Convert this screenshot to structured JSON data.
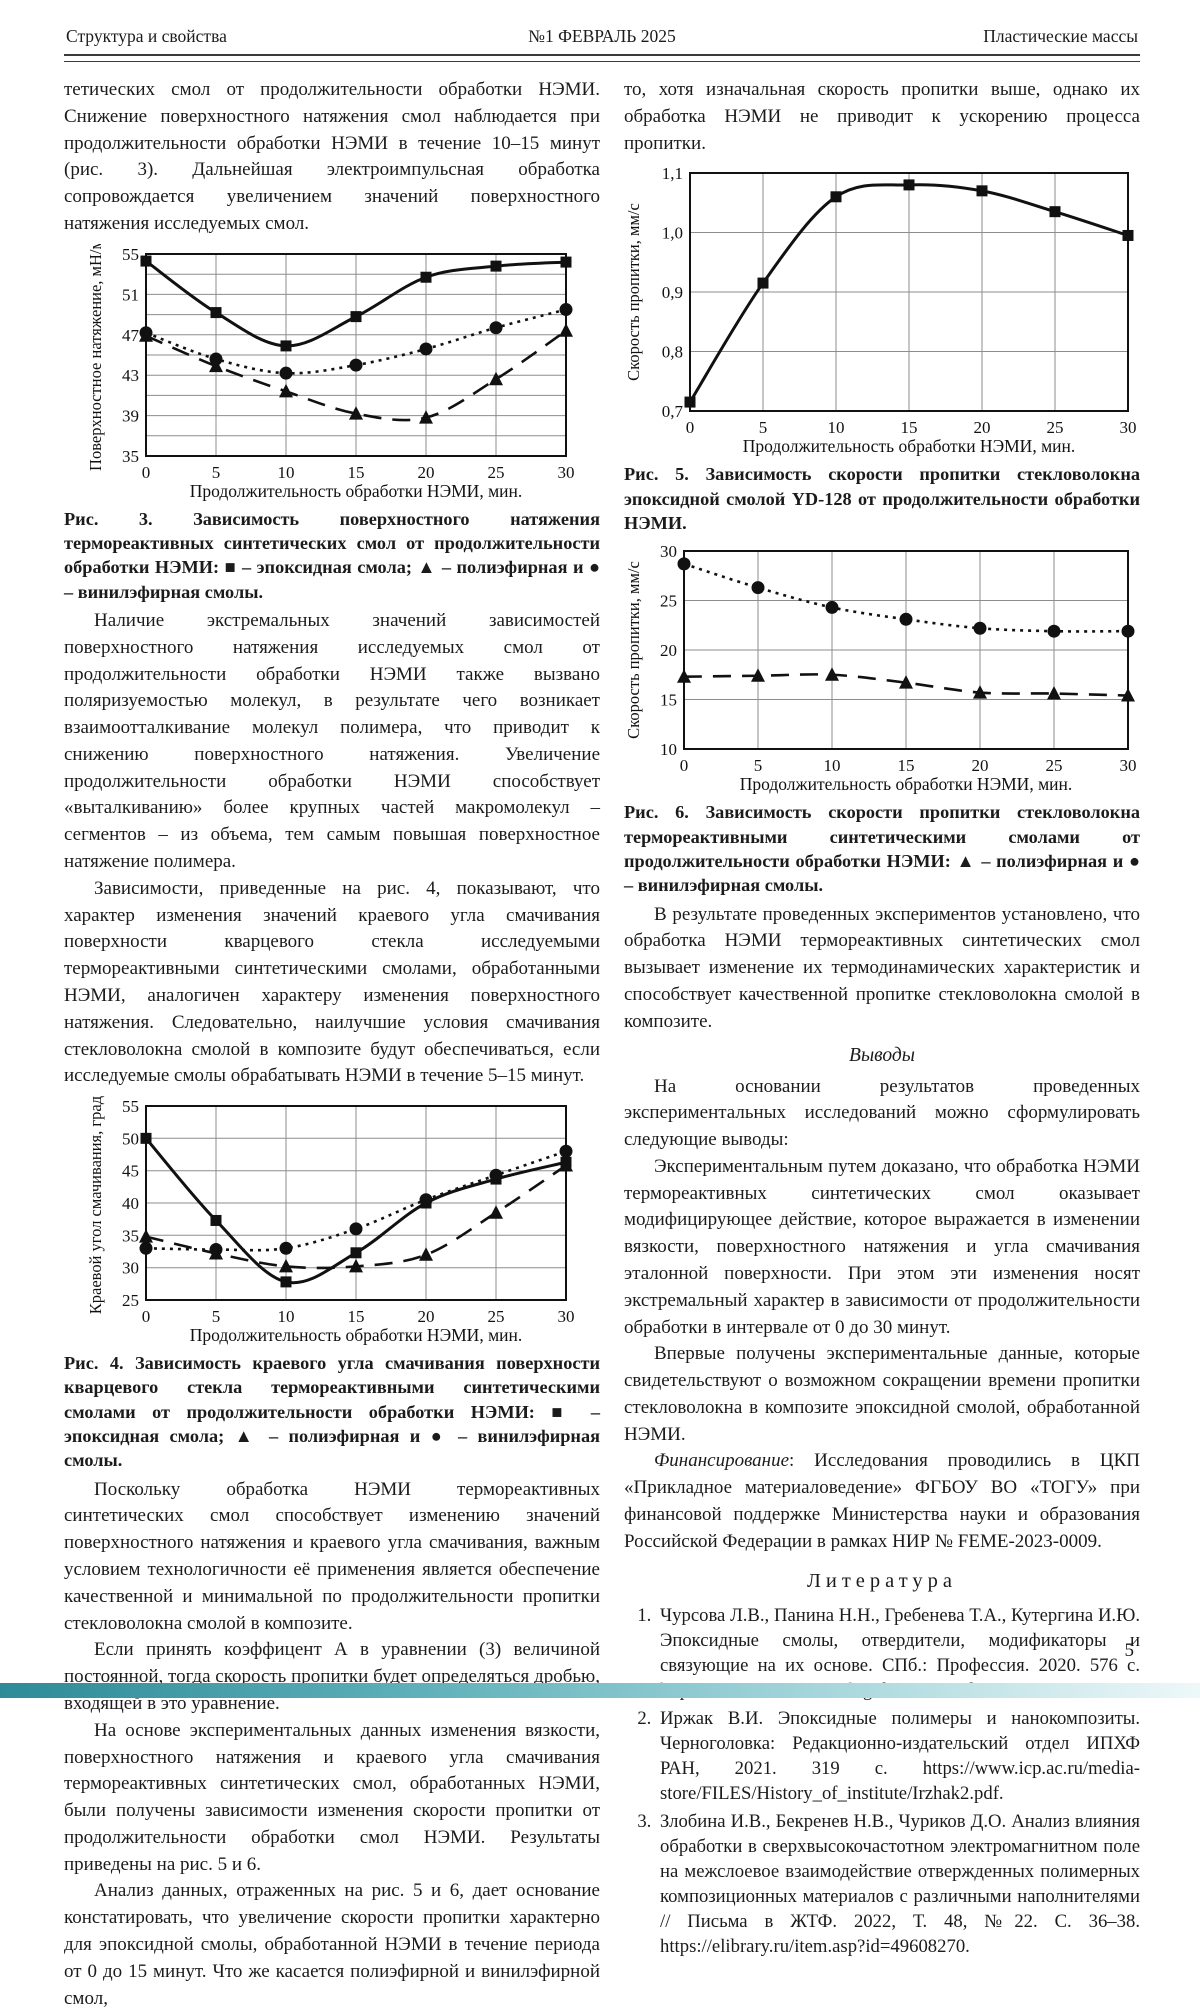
{
  "header": {
    "left": "Структура и свойства",
    "center": "№1  ФЕВРАЛЬ 2025",
    "right": "Пластические массы"
  },
  "page_number": "5",
  "left_column": {
    "p1": "тетических смол от продолжительности обработки НЭМИ. Снижение поверхностного натяжения смол наблюдается при продолжительности обработки НЭМИ в течение 10–15 минут (рис. 3). Дальнейшая электроимпульсная обработка сопровождается увеличением значений поверхностного натяжения исследуемых смол.",
    "fig3_caption": "Рис. 3. Зависимость поверхностного натяжения термореактивных синтетических смол от продолжительности обработки НЭМИ: ■ – эпоксидная смола; ▲ – полиэфирная и ● – винилэфирная смолы.",
    "p2": "Наличие экстремальных значений зависимостей поверхностного натяжения исследуемых смол от продолжительности обработки НЭМИ также вызвано поляризуемостью молекул, в результате чего возникает взаимоотталкивание молекул полимера, что приводит к снижению поверхностного натяжения. Увеличение продолжительности обработки НЭМИ способствует «выталкиванию» более крупных частей макромолекул – сегментов – из объема, тем самым повышая поверхностное натяжение полимера.",
    "p3": "Зависимости, приведенные на рис. 4, показывают, что характер изменения значений краевого угла смачивания поверхности кварцевого стекла исследуемыми термореактивными синтетическими смолами, обработанными НЭМИ, аналогичен характеру изменения поверхностного натяжения. Следовательно, наилучшие условия смачивания стекловолокна смолой в композите будут обеспечиваться, если исследуемые смолы обрабатывать НЭМИ в течение 5–15 минут.",
    "fig4_caption": "Рис. 4. Зависимость краевого угла смачивания поверхности кварцевого стекла термореактивными синтетическими смолами от продолжительности обработки НЭМИ: ■ – эпоксидная смола; ▲ – полиэфирная и ● – винилэфирная смолы.",
    "p4": "Поскольку обработка НЭМИ термореактивных синтетических смол способствует изменению значений поверхностного натяжения и краевого угла смачивания, важным условием технологичности её применения является обеспечение качественной и минимальной по продолжительности пропитки стекловолокна смолой в композите.",
    "p5": "Если принять коэффицент А в уравнении (3) величиной постоянной, тогда скорость пропитки будет определяться дробью, входящей в это уравнение.",
    "p6": "На основе экспериментальных данных изменения вязкости, поверхностного натяжения и краевого угла смачивания термореактивных синтетических смол, обработанных НЭМИ, были получены зависимости изменения скорости пропитки от продолжительности обработки смол НЭМИ. Результаты приведены на рис. 5 и 6.",
    "p7": "Анализ данных, отраженных на рис. 5 и 6, дает основание констатировать, что увеличение скорости пропитки характерно для эпоксидной смолы, обработанной НЭМИ в течение периода от 0 до 15 минут. Что же касается полиэфирной и винилэфирной смол,"
  },
  "right_column": {
    "p8": "то, хотя изначальная скорость пропитки выше, однако их обработка НЭМИ не приводит к ускорению процесса пропитки.",
    "fig5_caption": "Рис. 5. Зависимость скорости пропитки стекловолокна эпоксидной смолой YD-128 от продолжительности обработки НЭМИ.",
    "fig6_caption": "Рис. 6. Зависимость скорости пропитки стекловолокна термореактивными синтетическими смолами от продолжительности обработки НЭМИ: ▲ – полиэфирная и ● – винилэфирная смолы.",
    "p9": "В результате проведенных экспериментов установлено, что обработка НЭМИ термореактивных синтетических смол вызывает изменение их термодинамических характеристик и способствует качественной пропитке стекловолокна смолой в композите.",
    "conclusions_heading": "Выводы",
    "p10": "На основании результатов проведенных экспериментальных исследований можно сформулировать следующие выводы:",
    "p11": "Экспериментальным путем доказано, что обработка НЭМИ термореактивных синтетических смол оказывает модифицирующее действие, которое выражается в изменении вязкости, поверхностного натяжения и угла смачивания эталонной поверхности. При этом эти изменения носят экстремальный характер в зависимости от продолжительности обработки в интервале от 0 до 30 минут.",
    "p12": "Впервые получены экспериментальные данные, которые свидетельствуют о возможном сокращении времени пропитки стекловолокна в композите эпоксидной смолой, обработанной НЭМИ.",
    "funding_label": "Финансирование",
    "funding_text": ": Исследования проводились в ЦКП «Прикладное материаловедение» ФГБОУ ВО «ТОГУ» при финансовой поддержке Министерства науки и образования Российской Федерации в рамках НИР № FEME-2023-0009.",
    "references_heading": "Литература",
    "references": [
      "Чурсова Л.В., Панина Н.Н., Гребенева Т.А., Кутергина И.Ю. Эпоксидные смолы, отвердители, модификаторы и связующие на их основе. СПб.: Профессия. 2020. 576 с. https://znanium.com/catalog/document?id=414503.",
      "Иржак В.И. Эпоксидные полимеры и нанокомпозиты. Черноголовка: Редакционно-издательский отдел ИПХФ РАН, 2021. 319 с. https://www.icp.ac.ru/media-store/FILES/History_of_institute/Irzhak2.pdf.",
      "Злобина И.В., Бекренев Н.В., Чуриков Д.О. Анализ влияния обработки в сверхвысокочастотном электромагнитном поле на межслоевое взаимодействие отвержденных полимерных композиционных материалов с различными наполнителями // Письма в ЖТФ. 2022, Т. 48, №22. С. 36–38. https://elibrary.ru/item.asp?id=49608270."
    ]
  },
  "chart_data": [
    {
      "id": "fig3",
      "type": "line",
      "x": [
        0,
        5,
        10,
        15,
        20,
        25,
        30
      ],
      "xlabel": "Продолжительность обработки НЭМИ, мин.",
      "ylabel": "Поверхностное натяжение, мН/м",
      "ylim": [
        35,
        55
      ],
      "ytick_values": [
        35,
        39,
        43,
        47,
        51,
        55
      ],
      "ytick_labels": [
        "35",
        "39",
        "43",
        "47",
        "51",
        "55"
      ],
      "ygrid_step": 2,
      "grid": true,
      "legend_position": "in-caption",
      "series": [
        {
          "name": "эпоксидная смола",
          "marker": "square",
          "line": "solid",
          "values": [
            54.3,
            49.2,
            45.9,
            48.8,
            52.7,
            53.8,
            54.2
          ]
        },
        {
          "name": "винилэфирная смола",
          "marker": "circle",
          "line": "dotted",
          "values": [
            47.2,
            44.6,
            43.2,
            44.0,
            45.6,
            47.7,
            49.5
          ]
        },
        {
          "name": "полиэфирная смола",
          "marker": "triangle",
          "line": "dashed",
          "values": [
            46.9,
            43.9,
            41.4,
            39.2,
            38.8,
            42.6,
            47.4
          ]
        }
      ]
    },
    {
      "id": "fig4",
      "type": "line",
      "x": [
        0,
        5,
        10,
        15,
        20,
        25,
        30
      ],
      "xlabel": "Продолжительность обработки НЭМИ, мин.",
      "ylabel": "Краевой угол смачивания, град.",
      "ylim": [
        25,
        55
      ],
      "ytick_values": [
        25,
        30,
        35,
        40,
        45,
        50,
        55
      ],
      "ytick_labels": [
        "25",
        "30",
        "35",
        "40",
        "45",
        "50",
        "55"
      ],
      "ygrid_step": 5,
      "grid": true,
      "legend_position": "in-caption",
      "series": [
        {
          "name": "эпоксидная смола",
          "marker": "square",
          "line": "solid",
          "values": [
            50.0,
            37.3,
            27.8,
            32.3,
            40.0,
            43.7,
            46.3
          ]
        },
        {
          "name": "винилэфирная смола",
          "marker": "circle",
          "line": "dotted",
          "values": [
            33.0,
            32.8,
            33.0,
            36.0,
            40.5,
            44.3,
            48.0
          ]
        },
        {
          "name": "полиэфирная смола",
          "marker": "triangle",
          "line": "dashed",
          "values": [
            34.8,
            32.2,
            30.2,
            30.2,
            32.0,
            38.5,
            45.8
          ]
        }
      ]
    },
    {
      "id": "fig5",
      "type": "line",
      "x": [
        0,
        5,
        10,
        15,
        20,
        25,
        30
      ],
      "xlabel": "Продолжительность обработки НЭМИ, мин.",
      "ylabel": "Скорость пропитки, мм/с",
      "ylim": [
        0.7,
        1.1
      ],
      "ytick_values": [
        0.7,
        0.8,
        0.9,
        1.0,
        1.1
      ],
      "ytick_labels": [
        "0,7",
        "0,8",
        "0,9",
        "1,0",
        "1,1"
      ],
      "ygrid_step": 0.1,
      "grid": true,
      "legend_position": "in-caption",
      "series": [
        {
          "name": "эпоксидная смола YD-128",
          "marker": "square",
          "line": "solid",
          "values": [
            0.715,
            0.915,
            1.06,
            1.08,
            1.07,
            1.035,
            0.995
          ]
        }
      ]
    },
    {
      "id": "fig6",
      "type": "line",
      "x": [
        0,
        5,
        10,
        15,
        20,
        25,
        30
      ],
      "xlabel": "Продолжительность обработки НЭМИ, мин.",
      "ylabel": "Скорость пропитки, мм/с",
      "ylim": [
        10,
        30
      ],
      "ytick_values": [
        10,
        15,
        20,
        25,
        30
      ],
      "ytick_labels": [
        "10",
        "15",
        "20",
        "25",
        "30"
      ],
      "ygrid_step": 5,
      "grid": true,
      "legend_position": "in-caption",
      "series": [
        {
          "name": "винилэфирная смола",
          "marker": "circle",
          "line": "dotted",
          "values": [
            28.7,
            26.3,
            24.3,
            23.1,
            22.2,
            21.9,
            21.9
          ]
        },
        {
          "name": "полиэфирная смола",
          "marker": "triangle",
          "line": "dashed",
          "values": [
            17.3,
            17.4,
            17.5,
            16.7,
            15.7,
            15.6,
            15.4
          ]
        }
      ]
    }
  ]
}
